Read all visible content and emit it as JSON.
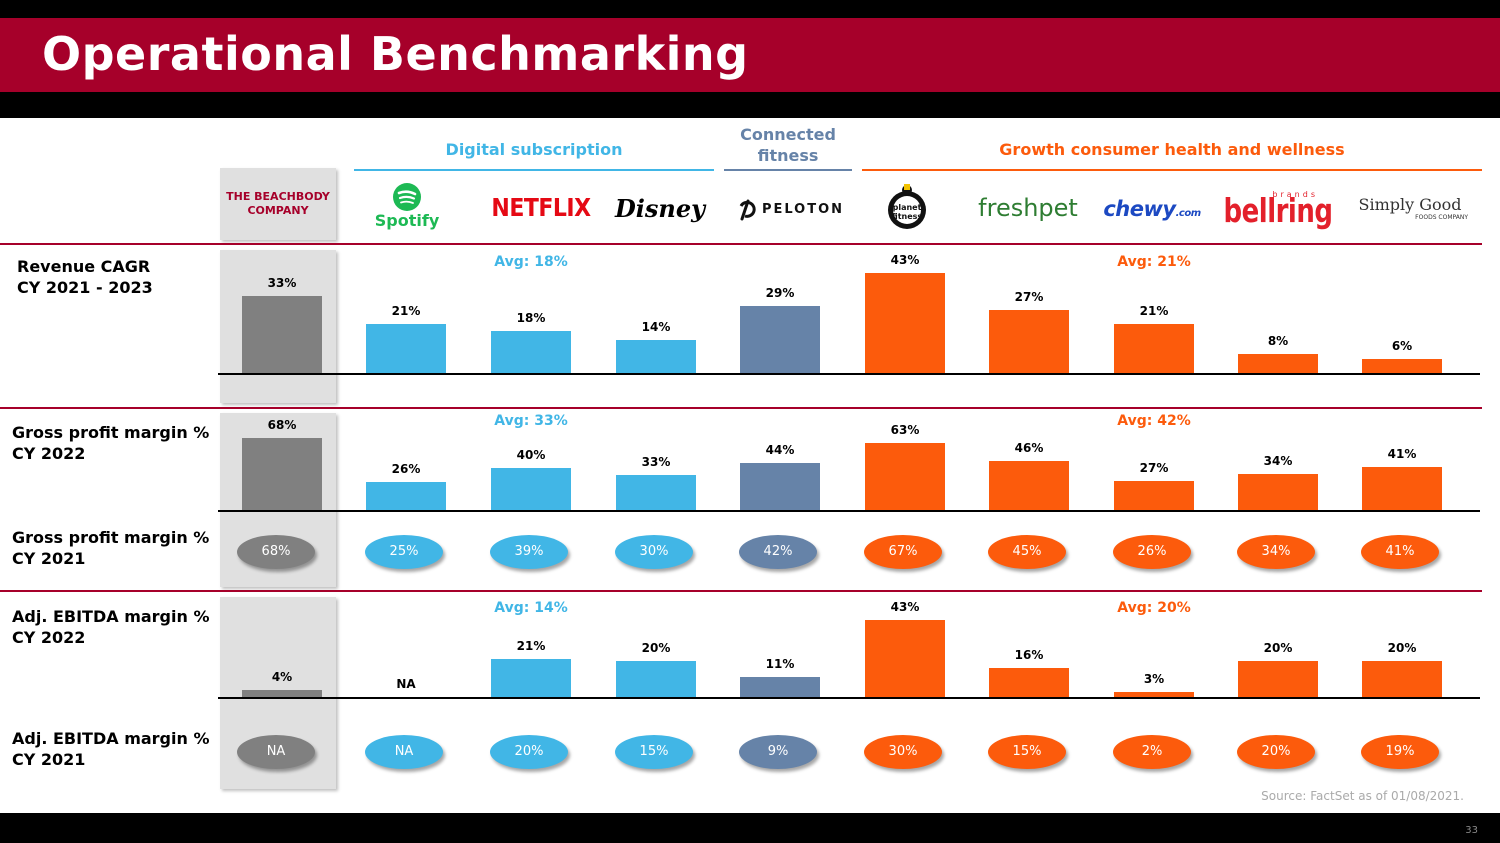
{
  "title": "Operational Benchmarking",
  "page_number": "33",
  "source": "Source:    FactSet as of 01/08/2021.",
  "colors": {
    "beachbody": "#808080",
    "digital": "#41b6e6",
    "connected": "#6683a8",
    "growth": "#fc5b0c",
    "accent": "#a6002a"
  },
  "groups": {
    "digital": "Digital subscription",
    "connected_line1": "Connected",
    "connected_line2": "fitness",
    "growth": "Growth consumer health and wellness"
  },
  "companies": [
    {
      "name": "THE BEACHBODY COMPANY",
      "line1": "THE BEACHBODY",
      "line2": "COMPANY",
      "group": "beachbody"
    },
    {
      "name": "Spotify",
      "group": "digital"
    },
    {
      "name": "NETFLIX",
      "group": "digital"
    },
    {
      "name": "Disney",
      "group": "digital"
    },
    {
      "name": "PELOTON",
      "group": "connected"
    },
    {
      "name": "planet fitness",
      "group": "growth"
    },
    {
      "name": "freshpet",
      "group": "growth"
    },
    {
      "name": "chewy",
      "suffix": ".com",
      "group": "growth"
    },
    {
      "name": "bellring",
      "small": "brands",
      "group": "growth"
    },
    {
      "name": "Simply Good",
      "small": "FOODS COMPANY",
      "group": "growth"
    }
  ],
  "row_labels": {
    "revenue": [
      "Revenue CAGR",
      "CY 2021 - 2023"
    ],
    "gp2022": [
      "Gross profit margin %",
      "CY 2022"
    ],
    "gp2021": [
      "Gross profit margin %",
      "CY 2021"
    ],
    "ebitda2022": [
      "Adj. EBITDA margin %",
      "CY 2022"
    ],
    "ebitda2021": [
      "Adj. EBITDA margin %",
      "CY 2021"
    ]
  },
  "chart_data": [
    {
      "type": "bar",
      "title": "Revenue CAGR CY 2021 - 2023",
      "categories": [
        "THE BEACHBODY COMPANY",
        "Spotify",
        "NETFLIX",
        "Disney",
        "PELOTON",
        "planet fitness",
        "freshpet",
        "chewy",
        "bellring",
        "Simply Good"
      ],
      "values": [
        33,
        21,
        18,
        14,
        29,
        43,
        27,
        21,
        8,
        6
      ],
      "labels": [
        "33%",
        "21%",
        "18%",
        "14%",
        "29%",
        "43%",
        "27%",
        "21%",
        "8%",
        "6%"
      ],
      "avg_digital": "Avg: 18%",
      "avg_growth": "Avg: 21%",
      "ylim": [
        0,
        43
      ]
    },
    {
      "type": "bar",
      "title": "Gross profit margin % CY 2022",
      "categories": [
        "THE BEACHBODY COMPANY",
        "Spotify",
        "NETFLIX",
        "Disney",
        "PELOTON",
        "planet fitness",
        "freshpet",
        "chewy",
        "bellring",
        "Simply Good"
      ],
      "values": [
        68,
        26,
        40,
        33,
        44,
        63,
        46,
        27,
        34,
        41
      ],
      "labels": [
        "68%",
        "26%",
        "40%",
        "33%",
        "44%",
        "63%",
        "46%",
        "27%",
        "34%",
        "41%"
      ],
      "avg_digital": "Avg: 33%",
      "avg_growth": "Avg: 42%",
      "ylim": [
        0,
        68
      ]
    },
    {
      "type": "bar",
      "title": "Adj. EBITDA margin % CY 2022",
      "categories": [
        "THE BEACHBODY COMPANY",
        "Spotify",
        "NETFLIX",
        "Disney",
        "PELOTON",
        "planet fitness",
        "freshpet",
        "chewy",
        "bellring",
        "Simply Good"
      ],
      "values": [
        4,
        null,
        21,
        20,
        11,
        43,
        16,
        3,
        20,
        20
      ],
      "labels": [
        "4%",
        "NA",
        "21%",
        "20%",
        "11%",
        "43%",
        "16%",
        "3%",
        "20%",
        "20%"
      ],
      "avg_digital": "Avg: 14%",
      "avg_growth": "Avg: 20%",
      "ylim": [
        0,
        43
      ]
    }
  ],
  "pills_gp2021": [
    "68%",
    "25%",
    "39%",
    "30%",
    "42%",
    "67%",
    "45%",
    "26%",
    "34%",
    "41%"
  ],
  "pills_ebitda2021": [
    "NA",
    "NA",
    "20%",
    "15%",
    "9%",
    "30%",
    "15%",
    "2%",
    "20%",
    "19%"
  ]
}
